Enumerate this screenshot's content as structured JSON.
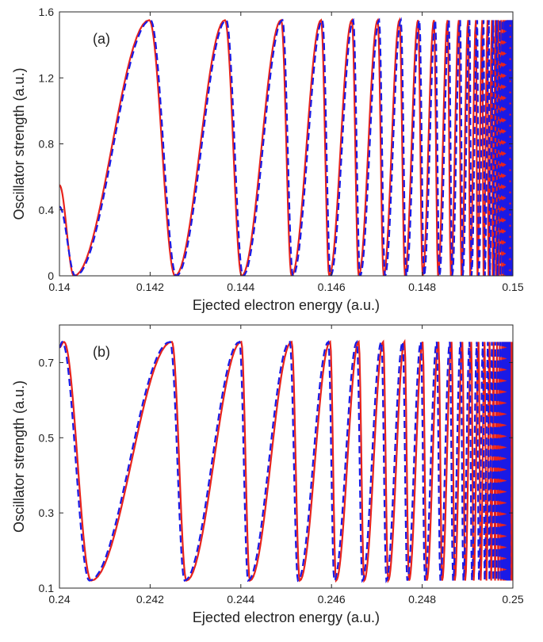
{
  "chart_data": [
    {
      "type": "line",
      "panel_label": "(a)",
      "xlabel": "Ejected electron energy (a.u.)",
      "ylabel": "Oscillator strength (a.u.)",
      "xlim": [
        0.14,
        0.15
      ],
      "ylim": [
        0,
        1.6
      ],
      "x_ticks": [
        0.14,
        0.142,
        0.144,
        0.146,
        0.148,
        0.15
      ],
      "x_tick_labels": [
        "0.14",
        "0.142",
        "0.144",
        "0.146",
        "0.148",
        "0.15"
      ],
      "y_ticks": [
        0,
        0.4,
        0.8,
        1.2,
        1.6
      ],
      "y_tick_labels": [
        "0",
        "0.4",
        "0.8",
        "1.2",
        "1.6"
      ],
      "grid": false,
      "legend": false,
      "series_meta": [
        {
          "color": "#e8231c",
          "style": "solid"
        },
        {
          "color": "#1a1ae6",
          "style": "dashed"
        }
      ],
      "oscillation": {
        "limit": 0.15,
        "ymin": 0.0,
        "ymax": 1.55,
        "start_value": 0.55,
        "minima": [
          0.14032,
          0.14255,
          0.14402,
          0.14512,
          0.14595,
          0.1466,
          0.14715,
          0.14762,
          0.14801,
          0.14835
        ],
        "maxima": [
          0.14198,
          0.14365,
          0.14489,
          0.14577,
          0.14645,
          0.14702,
          0.1475,
          0.14791,
          0.14826,
          0.14856
        ],
        "dashed_shift": 3e-05,
        "dashed_start_value": 0.42
      }
    },
    {
      "type": "line",
      "panel_label": "(b)",
      "xlabel": "Ejected electron energy (a.u.)",
      "ylabel": "Oscillator strength (a.u.)",
      "xlim": [
        0.24,
        0.25
      ],
      "ylim": [
        0.1,
        0.8
      ],
      "x_ticks": [
        0.24,
        0.242,
        0.244,
        0.246,
        0.248,
        0.25
      ],
      "x_tick_labels": [
        "0.24",
        "0.242",
        "0.244",
        "0.246",
        "0.248",
        "0.25"
      ],
      "y_ticks": [
        0.1,
        0.3,
        0.5,
        0.7
      ],
      "y_tick_labels": [
        "0.1",
        "0.3",
        "0.5",
        "0.7"
      ],
      "grid": false,
      "legend": false,
      "series_meta": [
        {
          "color": "#e8231c",
          "style": "solid"
        },
        {
          "color": "#1a1ae6",
          "style": "dashed"
        }
      ],
      "oscillation": {
        "limit": 0.25,
        "ymin": 0.12,
        "ymax": 0.755,
        "start_value": 0.74,
        "minima": [
          0.2407,
          0.2428,
          0.2442,
          0.2453,
          0.2461,
          0.24672,
          0.24725,
          0.24771,
          0.2481,
          0.24844
        ],
        "maxima": [
          0.2401,
          0.24248,
          0.24401,
          0.24512,
          0.24597,
          0.2466,
          0.24714,
          0.24761,
          0.24801,
          0.24836
        ],
        "dashed_shift": -4e-05,
        "dashed_start_value": 0.74
      }
    }
  ]
}
